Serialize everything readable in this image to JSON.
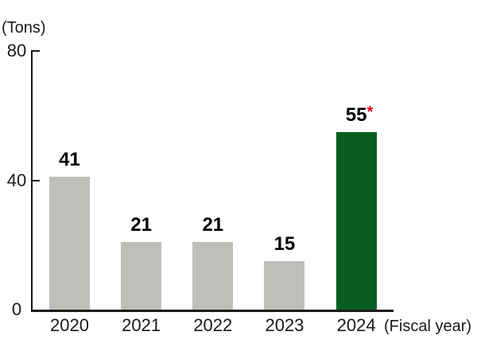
{
  "chart_data": {
    "type": "bar",
    "title": "",
    "unit_label": "(Tons)",
    "xlabel": "(Fiscal year)",
    "categories": [
      "2020",
      "2021",
      "2022",
      "2023",
      "2024"
    ],
    "values": [
      41,
      21,
      21,
      15,
      55
    ],
    "value_labels": [
      "41",
      "21",
      "21",
      "15",
      "55"
    ],
    "yticks": [
      "80",
      "40",
      "0"
    ],
    "ylim": [
      0,
      80
    ],
    "grid": false,
    "legend": false,
    "bar_default_color": "#bfbeba",
    "bar_highlight_color": "#075e20",
    "highlight": {
      "index": 4,
      "marker": "*",
      "marker_color": "#e60012"
    },
    "axis_color": "#1a1a1a"
  }
}
